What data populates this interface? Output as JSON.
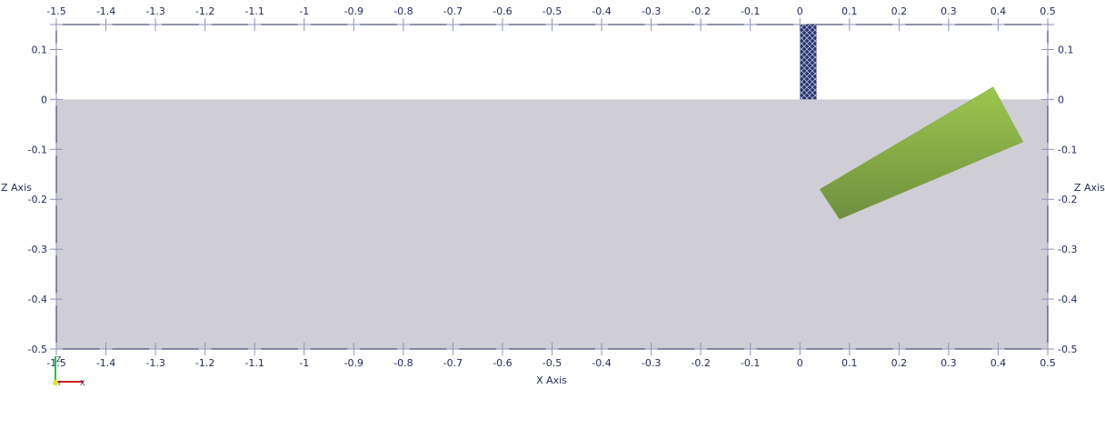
{
  "axes": {
    "x_title": "X Axis",
    "z_title": "Z Axis",
    "x_ticks": [
      "-1.5",
      "-1.4",
      "-1.3",
      "-1.2",
      "-1.1",
      "-1",
      "-0.9",
      "-0.8",
      "-0.7",
      "-0.6",
      "-0.5",
      "-0.4",
      "-0.3",
      "-0.2",
      "-0.1",
      "0",
      "0.1",
      "0.2",
      "0.3",
      "0.4",
      "0.5"
    ],
    "z_ticks": [
      "0.1",
      "0",
      "-0.1",
      "-0.2",
      "-0.3",
      "-0.4",
      "-0.5"
    ],
    "x_range": [
      -1.5,
      0.5
    ],
    "z_range": [
      -0.5,
      0.15
    ]
  },
  "scene": {
    "ground": {
      "z_top": 0,
      "z_bottom": -0.5,
      "color": "#cfced6"
    },
    "mesh_column": {
      "x_min": 0.0,
      "x_max": 0.03,
      "z_min": 0.0,
      "z_max": 0.15,
      "color": "#2b3571"
    },
    "green_block": {
      "corners": [
        [
          0.04,
          -0.18
        ],
        [
          0.39,
          0.025
        ],
        [
          0.45,
          -0.085
        ],
        [
          0.08,
          -0.24
        ]
      ],
      "color_light": "#9cc64e",
      "color_dark": "#6f8f3e"
    }
  },
  "orientation_widget": {
    "x_label": "X",
    "y_label": "Y",
    "z_label": "Z",
    "x_color": "#d21f1f",
    "y_color": "#e8e22a",
    "z_color": "#22c53a"
  }
}
